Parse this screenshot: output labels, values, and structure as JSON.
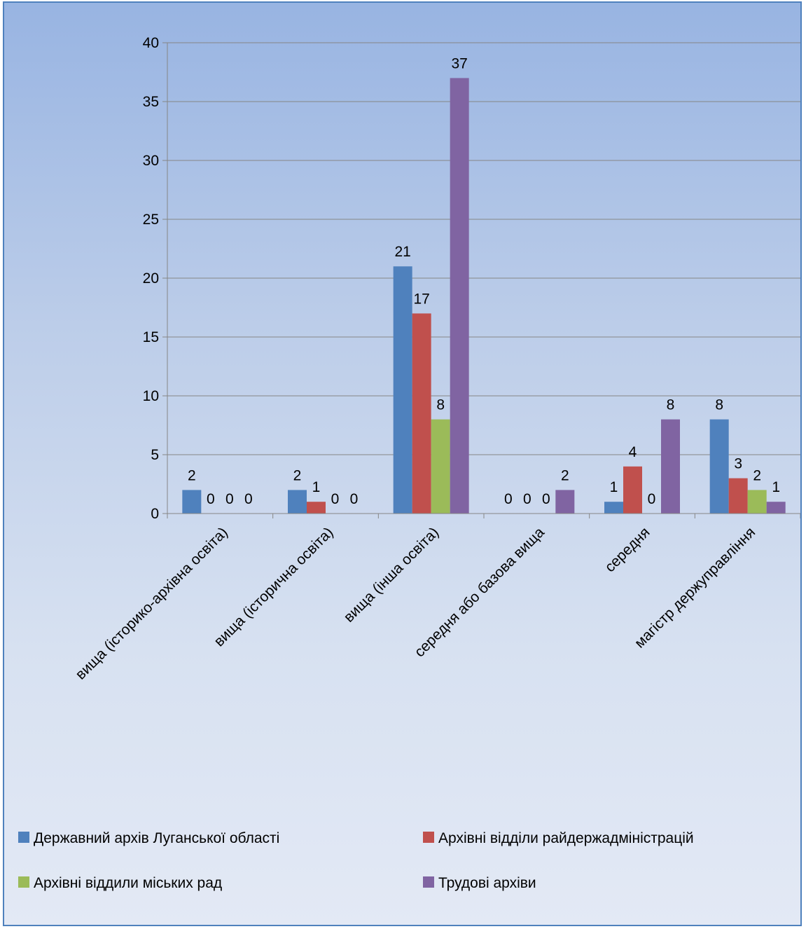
{
  "chart_data": {
    "type": "bar",
    "categories": [
      "вища (історико-архівна освіта)",
      "вища (історична освіта)",
      "вища (інша освіта)",
      "середня або базова вища",
      "середня",
      "магістр держуправління"
    ],
    "series": [
      {
        "name": "Державний архів Луганської області",
        "color": "#4f81bd",
        "values": [
          2,
          2,
          21,
          0,
          1,
          8
        ]
      },
      {
        "name": "Архівні відділи райдержадміністрацій",
        "color": "#c0504d",
        "values": [
          0,
          1,
          17,
          0,
          4,
          3
        ]
      },
      {
        "name": "Архівні віддили міських рад",
        "color": "#9bbb59",
        "values": [
          0,
          0,
          8,
          0,
          0,
          2
        ]
      },
      {
        "name": "Трудові архіви",
        "color": "#8064a2",
        "values": [
          0,
          0,
          37,
          2,
          8,
          1
        ]
      }
    ],
    "ylim": [
      0,
      40
    ],
    "yticks": [
      0,
      5,
      10,
      15,
      20,
      25,
      30,
      35,
      40
    ],
    "grid": true,
    "data_labels": true,
    "legend_position": "bottom"
  }
}
